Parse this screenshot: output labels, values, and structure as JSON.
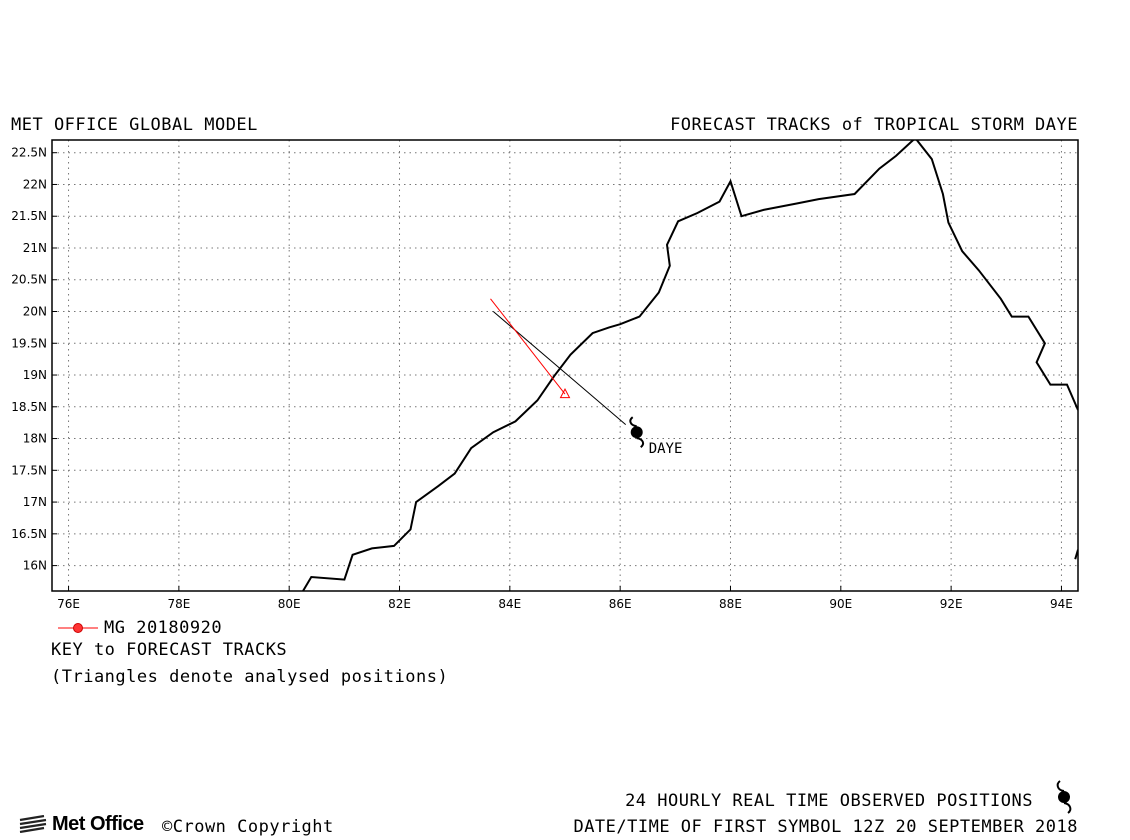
{
  "header": {
    "left": "MET OFFICE GLOBAL MODEL",
    "right": "FORECAST TRACKS of TROPICAL STORM DAYE"
  },
  "map": {
    "lon_range": [
      75.7,
      94.3
    ],
    "lat_range": [
      15.6,
      22.7
    ],
    "grid": true,
    "lat_labels": [
      "22.5N",
      "22N",
      "21.5N",
      "21N",
      "20.5N",
      "20N",
      "19.5N",
      "19N",
      "18.5N",
      "18N",
      "17.5N",
      "17N",
      "16.5N",
      "16N"
    ],
    "lat_values": [
      22.5,
      22.0,
      21.5,
      21.0,
      20.5,
      20.0,
      19.5,
      19.0,
      18.5,
      18.0,
      17.5,
      17.0,
      16.5,
      16.0
    ],
    "lon_labels": [
      "76E",
      "78E",
      "80E",
      "82E",
      "84E",
      "86E",
      "88E",
      "90E",
      "92E",
      "94E"
    ],
    "lon_values": [
      76,
      78,
      80,
      82,
      84,
      86,
      88,
      90,
      92,
      94
    ],
    "coastline_main": [
      [
        80.25,
        15.6
      ],
      [
        80.4,
        15.82
      ],
      [
        81.0,
        15.78
      ],
      [
        81.15,
        16.17
      ],
      [
        81.5,
        16.27
      ],
      [
        81.9,
        16.31
      ],
      [
        82.2,
        16.57
      ],
      [
        82.3,
        17.0
      ],
      [
        82.7,
        17.25
      ],
      [
        83.0,
        17.45
      ],
      [
        83.3,
        17.85
      ],
      [
        83.7,
        18.1
      ],
      [
        84.1,
        18.27
      ],
      [
        84.5,
        18.6
      ],
      [
        84.8,
        18.98
      ],
      [
        85.1,
        19.32
      ],
      [
        85.5,
        19.66
      ],
      [
        85.8,
        19.75
      ],
      [
        86.0,
        19.8
      ],
      [
        86.35,
        19.92
      ],
      [
        86.7,
        20.3
      ],
      [
        86.9,
        20.72
      ],
      [
        86.85,
        21.05
      ],
      [
        87.05,
        21.42
      ],
      [
        87.4,
        21.55
      ],
      [
        87.8,
        21.73
      ],
      [
        88.0,
        22.05
      ],
      [
        88.2,
        21.5
      ],
      [
        88.6,
        21.6
      ],
      [
        89.2,
        21.7
      ],
      [
        89.6,
        21.77
      ],
      [
        90.25,
        21.85
      ],
      [
        90.7,
        22.25
      ],
      [
        91.0,
        22.45
      ],
      [
        91.35,
        22.73
      ],
      [
        91.65,
        22.4
      ],
      [
        91.85,
        21.85
      ],
      [
        91.95,
        21.4
      ],
      [
        92.2,
        20.95
      ],
      [
        92.5,
        20.65
      ],
      [
        92.9,
        20.2
      ],
      [
        93.1,
        19.92
      ],
      [
        93.4,
        19.92
      ],
      [
        93.7,
        19.5
      ],
      [
        93.55,
        19.2
      ],
      [
        93.8,
        18.85
      ],
      [
        94.1,
        18.85
      ],
      [
        94.3,
        18.45
      ]
    ],
    "coastline_fragment": [
      [
        94.25,
        16.1
      ],
      [
        94.3,
        16.25
      ]
    ],
    "storm": {
      "name": "DAYE",
      "lon": 86.3,
      "lat": 18.1
    },
    "observed_track": [
      [
        83.7,
        20.0
      ],
      [
        86.1,
        18.22
      ]
    ],
    "forecast_track": {
      "model": "MG 20180920",
      "color": "#ff0000",
      "points": [
        [
          83.65,
          20.2
        ],
        [
          85.0,
          18.7
        ]
      ]
    },
    "analysed_position": {
      "lon": 85.0,
      "lat": 18.7
    }
  },
  "legend": {
    "model_label": "MG 20180920",
    "key_title": "KEY to FORECAST TRACKS",
    "key_note": "(Triangles denote analysed positions)"
  },
  "footer": {
    "observed_label": "24 HOURLY REAL TIME OBSERVED POSITIONS",
    "datetime_label": "DATE/TIME OF FIRST SYMBOL 12Z 20 SEPTEMBER 2018",
    "logo": "Met Office",
    "copyright": "©Crown Copyright"
  }
}
